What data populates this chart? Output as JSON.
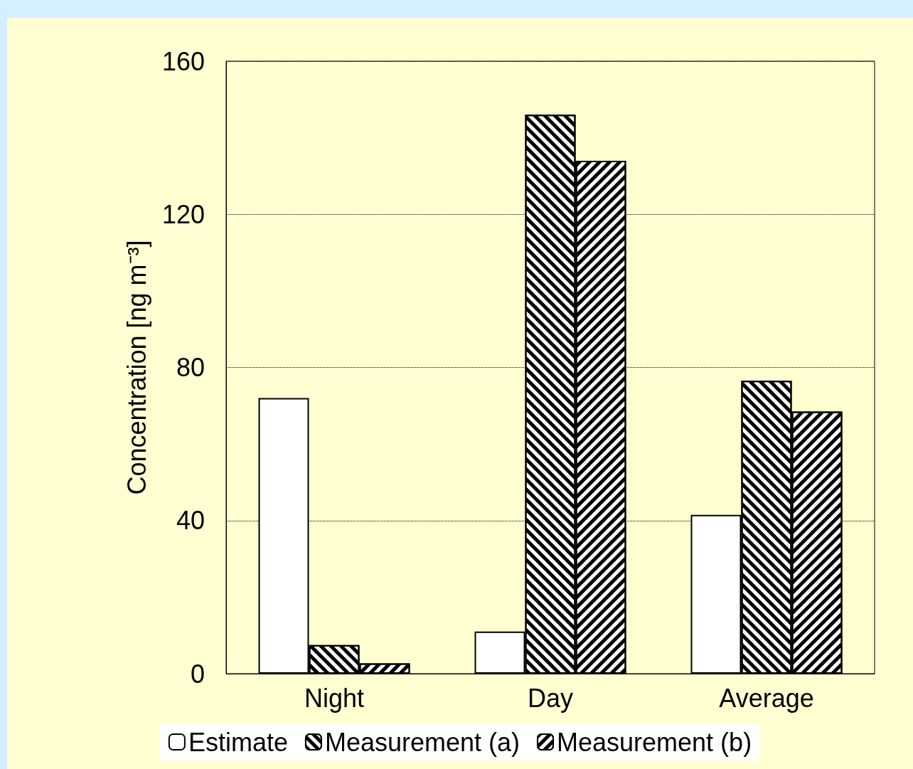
{
  "chart_data": {
    "type": "bar",
    "ylabel": "Concentration [ng m⁻³]",
    "categories": [
      "Night",
      "Day",
      "Average"
    ],
    "series": [
      {
        "name": "Estimate",
        "color": "#ffffff",
        "values": [
          72,
          11,
          41.5
        ]
      },
      {
        "name": "Measurement (a)",
        "color": "#000000",
        "values": [
          7.5,
          146,
          76.5
        ]
      },
      {
        "name": "Measurement (b)",
        "color": "#000000",
        "values": [
          2.7,
          134,
          68.5
        ]
      }
    ],
    "ylim": [
      0,
      160
    ],
    "yticks": [
      0,
      40,
      80,
      120,
      160
    ],
    "grid": "y",
    "legend": "bottom"
  }
}
